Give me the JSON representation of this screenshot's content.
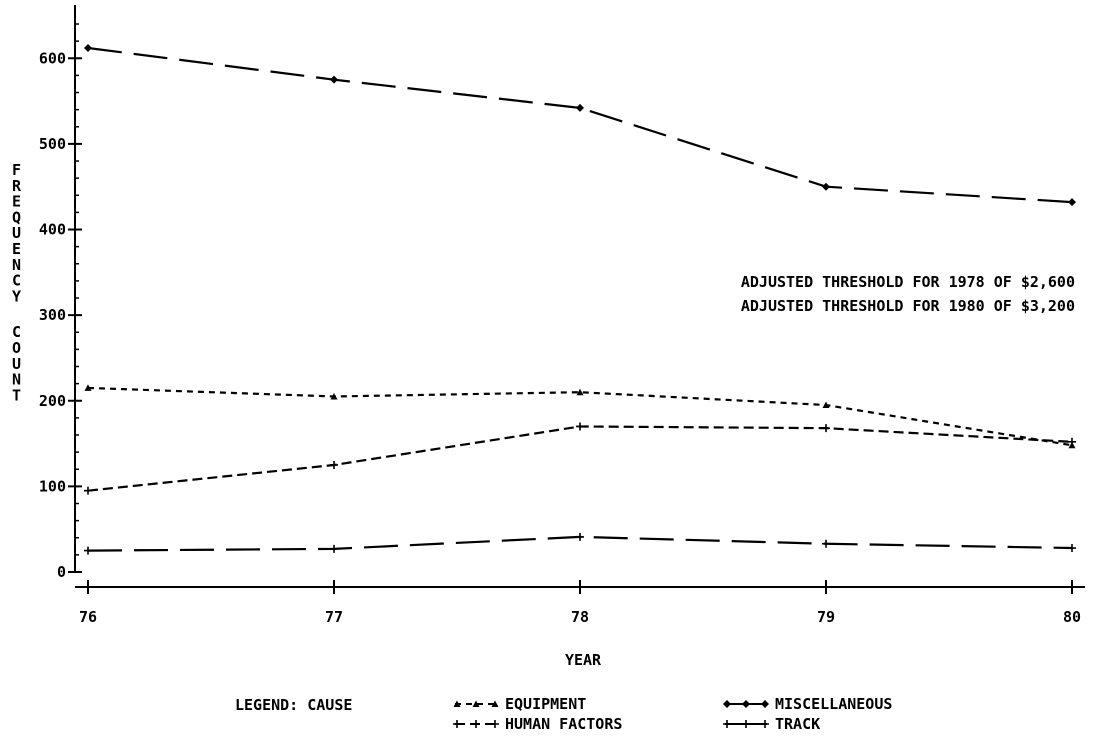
{
  "chart_data": {
    "type": "line",
    "title": "",
    "xlabel": "YEAR",
    "ylabel": "FREQUENCY COUNT",
    "x": [
      76,
      77,
      78,
      79,
      80
    ],
    "x_tick_labels": [
      "76",
      "77",
      "78",
      "79",
      "80"
    ],
    "xlim": [
      76,
      80
    ],
    "ylim": [
      0,
      620
    ],
    "y_ticks": [
      0,
      100,
      200,
      300,
      400,
      500,
      600
    ],
    "y_tick_labels": [
      "0",
      "100",
      "200",
      "300",
      "400",
      "500",
      "600"
    ],
    "grid": false,
    "legend_title": "LEGEND: CAUSE",
    "legend_position": "bottom",
    "series": [
      {
        "name": "EQUIPMENT",
        "values": [
          215,
          205,
          210,
          195,
          148
        ],
        "dash": "6,5"
      },
      {
        "name": "HUMAN FACTORS",
        "values": [
          95,
          125,
          170,
          168,
          152
        ],
        "dash": "10,5"
      },
      {
        "name": "MISCELLANEOUS",
        "values": [
          612,
          575,
          542,
          450,
          432
        ],
        "dash": "34,12"
      },
      {
        "name": "TRACK",
        "values": [
          25,
          27,
          41,
          33,
          28
        ],
        "dash": "34,12"
      }
    ],
    "annotations": [
      "ADJUSTED THRESHOLD FOR 1978 OF $2,600",
      "ADJUSTED THRESHOLD FOR 1980 OF $3,200"
    ]
  }
}
